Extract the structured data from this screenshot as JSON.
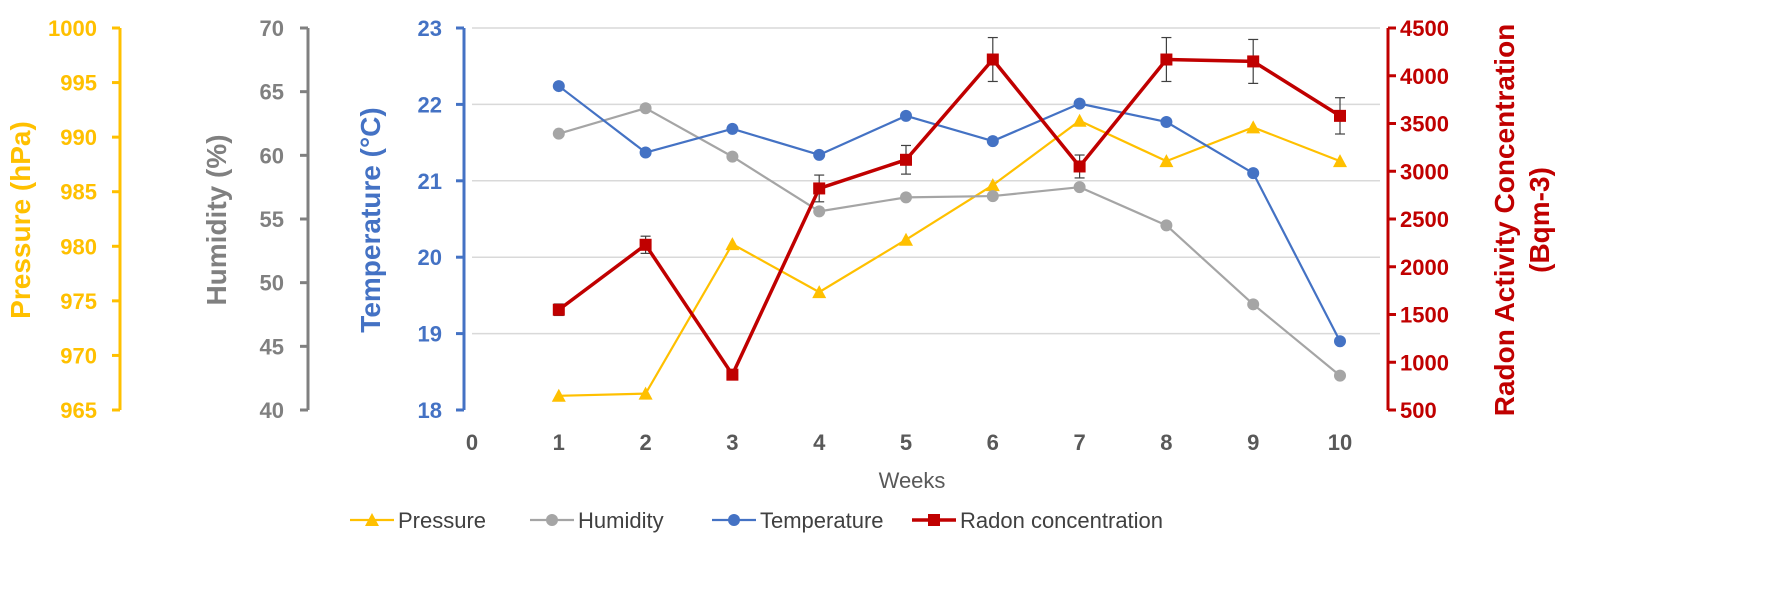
{
  "chart_data": {
    "type": "line",
    "xlabel": "Weeks",
    "x_ticks": [
      0,
      1,
      2,
      3,
      4,
      5,
      6,
      7,
      8,
      9,
      10
    ],
    "xlim": [
      0,
      10
    ],
    "x": [
      1,
      2,
      3,
      4,
      5,
      6,
      7,
      8,
      9,
      10
    ],
    "grid": "horizontal",
    "legend_position": "bottom",
    "axes": [
      {
        "id": "pressure",
        "label": "Pressure (hPa)",
        "color": "#FFC000",
        "ylim": [
          965,
          1000
        ],
        "ticks": [
          965,
          970,
          975,
          980,
          985,
          990,
          995,
          1000
        ]
      },
      {
        "id": "humidity",
        "label": "Humidity (%)",
        "color": "#808080",
        "ylim": [
          40,
          70
        ],
        "ticks": [
          40,
          45,
          50,
          55,
          60,
          65,
          70
        ]
      },
      {
        "id": "temperature",
        "label": "Temperature (°C)",
        "color": "#4472C4",
        "ylim": [
          18,
          23
        ],
        "ticks": [
          18,
          19,
          20,
          21,
          22,
          23
        ]
      },
      {
        "id": "radon",
        "label_lines": [
          "Radon Activity Concentration",
          "(Bqm-3)"
        ],
        "color": "#C00000",
        "ylim": [
          500,
          4500
        ],
        "ticks": [
          500,
          1000,
          1500,
          2000,
          2500,
          3000,
          3500,
          4000,
          4500
        ]
      }
    ],
    "series": [
      {
        "name": "Pressure",
        "axis": "pressure",
        "marker": "triangle",
        "color": "#FFC000",
        "values": [
          966.3,
          966.5,
          980.2,
          975.8,
          980.6,
          985.6,
          991.5,
          987.8,
          990.9,
          987.8
        ]
      },
      {
        "name": "Humidity",
        "axis": "humidity",
        "marker": "circle",
        "color": "#A5A5A5",
        "values": [
          61.7,
          63.7,
          59.9,
          55.6,
          56.7,
          56.8,
          57.5,
          54.5,
          48.3,
          42.7
        ]
      },
      {
        "name": "Temperature",
        "axis": "temperature",
        "marker": "circle",
        "color": "#4472C4",
        "values": [
          22.24,
          21.37,
          21.68,
          21.34,
          21.85,
          21.52,
          22.01,
          21.77,
          21.1,
          18.9
        ]
      },
      {
        "name": "Radon concentration",
        "axis": "radon",
        "marker": "square",
        "color": "#C00000",
        "values": [
          1550,
          2230,
          870,
          2820,
          3120,
          4170,
          3050,
          4170,
          4150,
          3580
        ],
        "error": [
          60,
          90,
          0,
          140,
          150,
          230,
          120,
          230,
          230,
          190
        ]
      }
    ]
  }
}
